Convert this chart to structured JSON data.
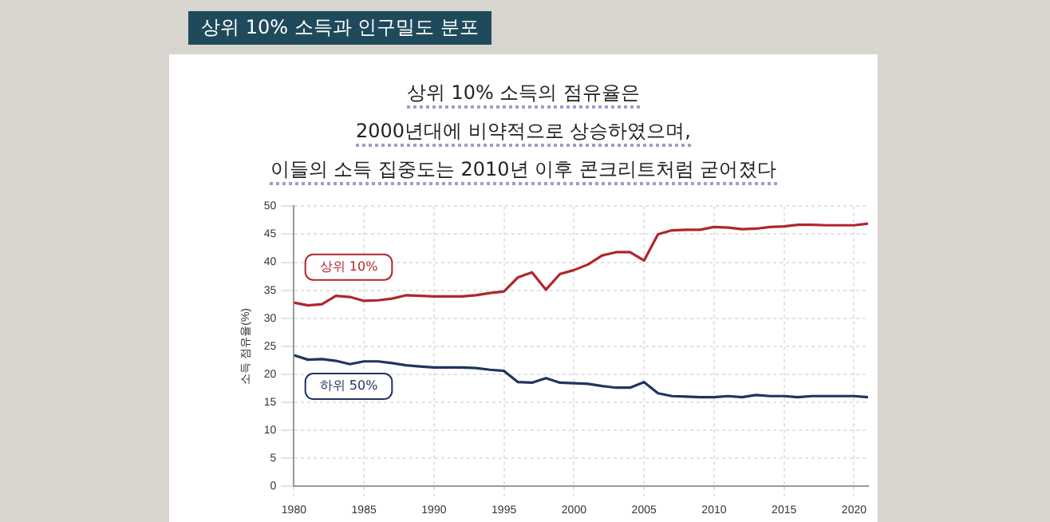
{
  "chart_data": {
    "type": "line",
    "subtitle": "상위 10% 소득과 인구밀도 분포",
    "title": [
      "상위 10% 소득의 점유율은",
      "2000년대에 비약적으로 상승하였으며,",
      "이들의 소득 집중도는 2010년 이후 콘크리트처럼 굳어졌다"
    ],
    "ylabel": "소득 점유율(%)",
    "x": [
      1980,
      1981,
      1982,
      1983,
      1984,
      1985,
      1986,
      1987,
      1988,
      1989,
      1990,
      1991,
      1992,
      1993,
      1994,
      1995,
      1996,
      1997,
      1998,
      1999,
      2000,
      2001,
      2002,
      2003,
      2004,
      2005,
      2006,
      2007,
      2008,
      2009,
      2010,
      2011,
      2012,
      2013,
      2014,
      2015,
      2016,
      2017,
      2018,
      2019,
      2020,
      2021
    ],
    "series": [
      {
        "name": "상위 10%",
        "color": "#b0262c",
        "values": [
          32.8,
          32.3,
          32.5,
          34,
          33.8,
          33.1,
          33.2,
          33.5,
          34.1,
          34,
          33.9,
          33.9,
          33.9,
          34.1,
          34.5,
          34.8,
          37.3,
          38.2,
          35.1,
          37.9,
          38.6,
          39.6,
          41.2,
          41.8,
          41.8,
          40.3,
          45,
          45.7,
          45.8,
          45.8,
          46.3,
          46.2,
          45.9,
          46,
          46.3,
          46.4,
          46.7,
          46.7,
          46.6,
          46.6,
          46.6,
          46.9
        ]
      },
      {
        "name": "하위 50%",
        "color": "#1f3560",
        "values": [
          23.4,
          22.6,
          22.7,
          22.4,
          21.8,
          22.3,
          22.3,
          22,
          21.6,
          21.4,
          21.2,
          21.2,
          21.2,
          21.1,
          20.8,
          20.6,
          18.6,
          18.5,
          19.3,
          18.5,
          18.4,
          18.3,
          17.9,
          17.6,
          17.6,
          18.6,
          16.6,
          16.1,
          16,
          15.9,
          15.9,
          16.1,
          15.9,
          16.3,
          16.1,
          16.1,
          15.9,
          16.1,
          16.1,
          16.1,
          16.1,
          15.9
        ]
      }
    ],
    "xlim": [
      1980,
      2021
    ],
    "xticks": [
      1980,
      1985,
      1990,
      1995,
      2000,
      2005,
      2010,
      2015,
      2020
    ],
    "ylim": [
      0,
      50
    ],
    "yticks": [
      0,
      5,
      10,
      15,
      20,
      25,
      30,
      35,
      40,
      45,
      50
    ],
    "grid": true,
    "line_style": "solid",
    "marker": "none",
    "legend": false
  }
}
